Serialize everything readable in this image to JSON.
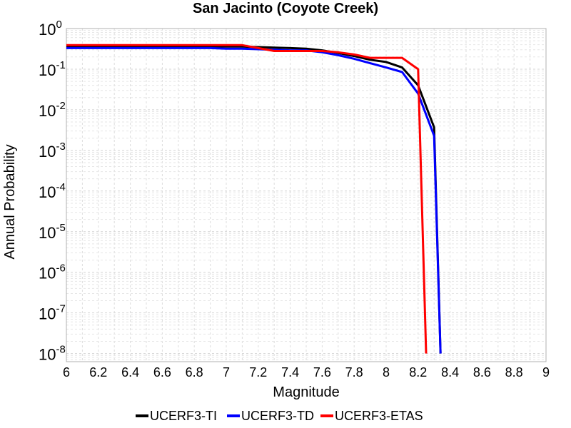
{
  "chart_data": {
    "type": "line",
    "title": "San Jacinto (Coyote Creek)",
    "xlabel": "Magnitude",
    "ylabel": "Annual Probability",
    "xlim": [
      6,
      9
    ],
    "ylim_exponents": [
      -8.2,
      0
    ],
    "y_scale": "log",
    "grid": true,
    "legend_position": "bottom",
    "x_ticks": [
      "6",
      "6.2",
      "6.4",
      "6.6",
      "6.8",
      "7",
      "7.2",
      "7.4",
      "7.6",
      "7.8",
      "8",
      "8.2",
      "8.4",
      "8.6",
      "8.8",
      "9"
    ],
    "y_ticks": [
      {
        "base": "10",
        "exp": "0"
      },
      {
        "base": "10",
        "exp": "-1"
      },
      {
        "base": "10",
        "exp": "-2"
      },
      {
        "base": "10",
        "exp": "-3"
      },
      {
        "base": "10",
        "exp": "-4"
      },
      {
        "base": "10",
        "exp": "-5"
      },
      {
        "base": "10",
        "exp": "-6"
      },
      {
        "base": "10",
        "exp": "-7"
      },
      {
        "base": "10",
        "exp": "-8"
      }
    ],
    "series": [
      {
        "name": "UCERF3-TI",
        "color": "#000000",
        "x": [
          6.0,
          6.1,
          6.2,
          6.3,
          6.4,
          6.5,
          6.6,
          6.7,
          6.8,
          6.9,
          7.0,
          7.1,
          7.2,
          7.3,
          7.4,
          7.5,
          7.6,
          7.7,
          7.8,
          7.9,
          8.0,
          8.1,
          8.2,
          8.3,
          8.34
        ],
        "y": [
          0.36,
          0.36,
          0.36,
          0.36,
          0.36,
          0.36,
          0.36,
          0.36,
          0.36,
          0.36,
          0.36,
          0.36,
          0.35,
          0.34,
          0.33,
          0.32,
          0.29,
          0.25,
          0.21,
          0.17,
          0.15,
          0.11,
          0.04,
          0.0037,
          1e-08
        ]
      },
      {
        "name": "UCERF3-TD",
        "color": "#0000ff",
        "x": [
          6.0,
          6.1,
          6.2,
          6.3,
          6.4,
          6.5,
          6.6,
          6.7,
          6.8,
          6.9,
          7.0,
          7.1,
          7.2,
          7.3,
          7.4,
          7.5,
          7.6,
          7.7,
          7.8,
          7.9,
          8.0,
          8.1,
          8.2,
          8.3,
          8.34
        ],
        "y": [
          0.33,
          0.33,
          0.33,
          0.33,
          0.33,
          0.33,
          0.33,
          0.33,
          0.33,
          0.33,
          0.32,
          0.32,
          0.31,
          0.3,
          0.29,
          0.29,
          0.26,
          0.22,
          0.18,
          0.14,
          0.11,
          0.085,
          0.025,
          0.0023,
          1e-08
        ]
      },
      {
        "name": "UCERF3-ETAS",
        "color": "#ff0000",
        "x": [
          6.0,
          6.1,
          6.2,
          6.3,
          6.4,
          6.5,
          6.6,
          6.7,
          6.8,
          6.9,
          7.0,
          7.1,
          7.2,
          7.3,
          7.4,
          7.5,
          7.6,
          7.7,
          7.8,
          7.9,
          8.0,
          8.1,
          8.2,
          8.25
        ],
        "y": [
          0.39,
          0.39,
          0.39,
          0.39,
          0.39,
          0.39,
          0.39,
          0.39,
          0.39,
          0.39,
          0.39,
          0.39,
          0.33,
          0.28,
          0.28,
          0.28,
          0.28,
          0.26,
          0.23,
          0.19,
          0.19,
          0.19,
          0.1,
          1e-08
        ]
      }
    ]
  }
}
